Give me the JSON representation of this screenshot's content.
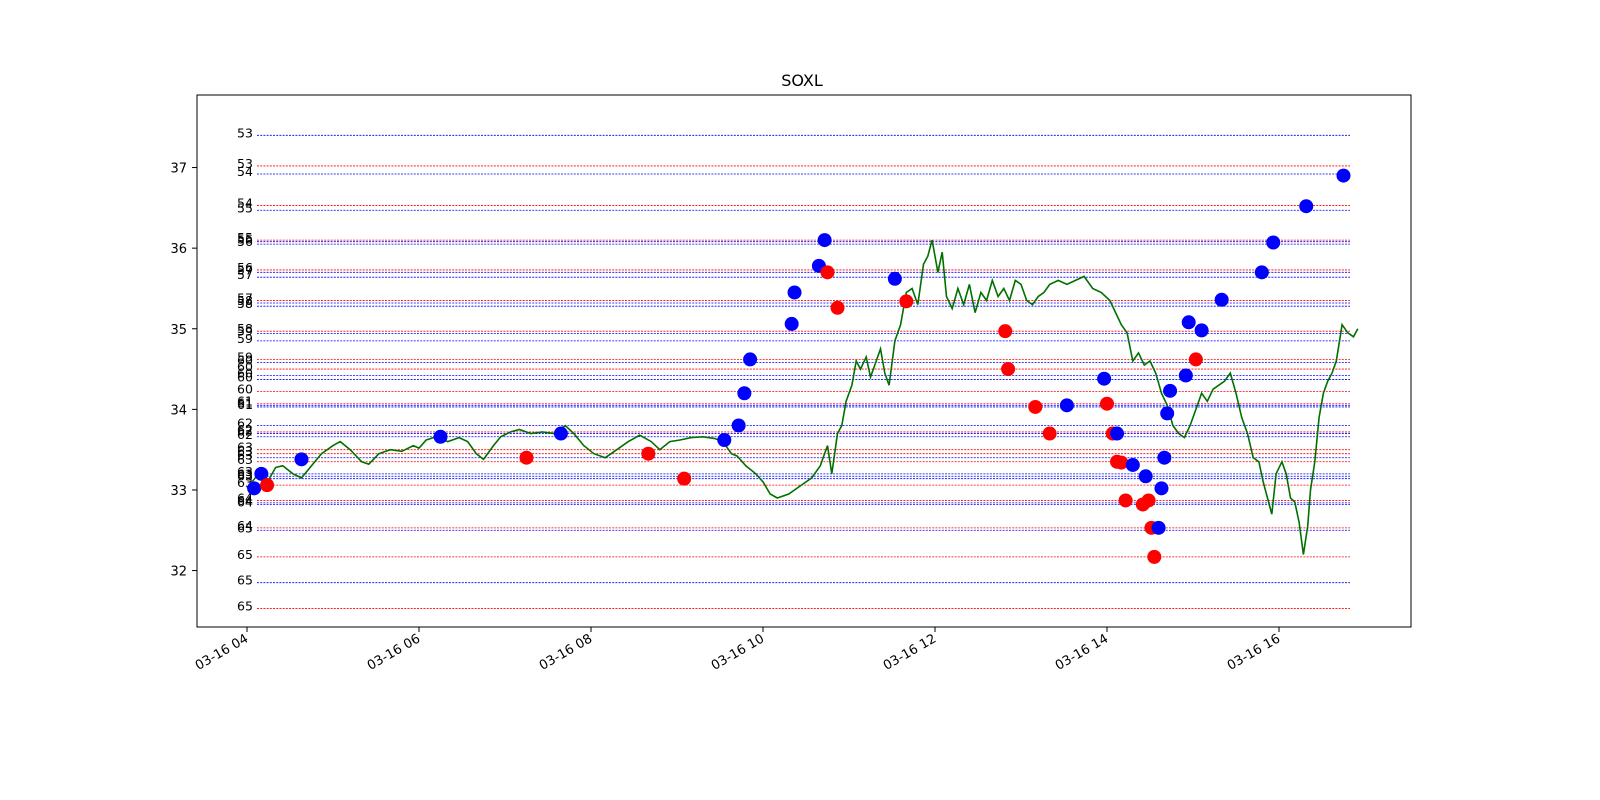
{
  "chart_data": {
    "type": "line",
    "title": "SOXL",
    "xlabel": "",
    "ylabel": "",
    "x_range": [
      "03-16 04:00",
      "03-16 16:55"
    ],
    "ylim": [
      31.3,
      37.9
    ],
    "x_ticks": [
      "03-16 04",
      "03-16 06",
      "03-16 08",
      "03-16 10",
      "03-16 12",
      "03-16 14",
      "03-16 16"
    ],
    "y_ticks": [
      32,
      33,
      34,
      35,
      36,
      37
    ],
    "grid": false,
    "colors": {
      "line": "#007000",
      "buy": "#0000ff",
      "sell": "#ff0000"
    },
    "price_series": {
      "name": "",
      "points": [
        [
          "03-16 04:00",
          33.02
        ],
        [
          "03-16 04:08",
          33.2
        ],
        [
          "03-16 04:13",
          33.06
        ],
        [
          "03-16 04:20",
          33.28
        ],
        [
          "03-16 04:25",
          33.3
        ],
        [
          "03-16 04:32",
          33.2
        ],
        [
          "03-16 04:38",
          33.15
        ],
        [
          "03-16 04:45",
          33.3
        ],
        [
          "03-16 04:52",
          33.45
        ],
        [
          "03-16 05:00",
          33.55
        ],
        [
          "03-16 05:05",
          33.6
        ],
        [
          "03-16 05:12",
          33.5
        ],
        [
          "03-16 05:20",
          33.35
        ],
        [
          "03-16 05:25",
          33.32
        ],
        [
          "03-16 05:32",
          33.45
        ],
        [
          "03-16 05:40",
          33.5
        ],
        [
          "03-16 05:48",
          33.48
        ],
        [
          "03-16 05:56",
          33.55
        ],
        [
          "03-16 06:00",
          33.52
        ],
        [
          "03-16 06:05",
          33.62
        ],
        [
          "03-16 06:12",
          33.66
        ],
        [
          "03-16 06:20",
          33.6
        ],
        [
          "03-16 06:28",
          33.65
        ],
        [
          "03-16 06:34",
          33.6
        ],
        [
          "03-16 06:40",
          33.45
        ],
        [
          "03-16 06:45",
          33.38
        ],
        [
          "03-16 06:52",
          33.55
        ],
        [
          "03-16 06:57",
          33.66
        ],
        [
          "03-16 07:04",
          33.72
        ],
        [
          "03-16 07:10",
          33.75
        ],
        [
          "03-16 07:18",
          33.7
        ],
        [
          "03-16 07:26",
          33.72
        ],
        [
          "03-16 07:34",
          33.7
        ],
        [
          "03-16 07:42",
          33.8
        ],
        [
          "03-16 07:48",
          33.7
        ],
        [
          "03-16 07:55",
          33.55
        ],
        [
          "03-16 08:02",
          33.45
        ],
        [
          "03-16 08:10",
          33.4
        ],
        [
          "03-16 08:18",
          33.5
        ],
        [
          "03-16 08:26",
          33.6
        ],
        [
          "03-16 08:34",
          33.68
        ],
        [
          "03-16 08:42",
          33.6
        ],
        [
          "03-16 08:48",
          33.5
        ],
        [
          "03-16 08:55",
          33.6
        ],
        [
          "03-16 09:02",
          33.62
        ],
        [
          "03-16 09:10",
          33.65
        ],
        [
          "03-16 09:18",
          33.66
        ],
        [
          "03-16 09:26",
          33.64
        ],
        [
          "03-16 09:32",
          33.6
        ],
        [
          "03-16 09:38",
          33.45
        ],
        [
          "03-16 09:42",
          33.42
        ],
        [
          "03-16 09:48",
          33.3
        ],
        [
          "03-16 09:55",
          33.2
        ],
        [
          "03-16 10:00",
          33.1
        ],
        [
          "03-16 10:05",
          32.95
        ],
        [
          "03-16 10:10",
          32.9
        ],
        [
          "03-16 10:18",
          32.95
        ],
        [
          "03-16 10:26",
          33.05
        ],
        [
          "03-16 10:34",
          33.15
        ],
        [
          "03-16 10:40",
          33.3
        ],
        [
          "03-16 10:45",
          33.55
        ],
        [
          "03-16 10:48",
          33.2
        ],
        [
          "03-16 10:52",
          33.7
        ],
        [
          "03-16 10:55",
          33.8
        ],
        [
          "03-16 10:58",
          34.1
        ],
        [
          "03-16 11:02",
          34.3
        ],
        [
          "03-16 11:05",
          34.6
        ],
        [
          "03-16 11:08",
          34.5
        ],
        [
          "03-16 11:12",
          34.65
        ],
        [
          "03-16 11:15",
          34.4
        ],
        [
          "03-16 11:18",
          34.55
        ],
        [
          "03-16 11:22",
          34.75
        ],
        [
          "03-16 11:25",
          34.45
        ],
        [
          "03-16 11:28",
          34.3
        ],
        [
          "03-16 11:32",
          34.85
        ],
        [
          "03-16 11:36",
          35.05
        ],
        [
          "03-16 11:40",
          35.45
        ],
        [
          "03-16 11:44",
          35.5
        ],
        [
          "03-16 11:48",
          35.3
        ],
        [
          "03-16 11:52",
          35.8
        ],
        [
          "03-16 11:55",
          35.9
        ],
        [
          "03-16 11:58",
          36.1
        ],
        [
          "03-16 12:02",
          35.7
        ],
        [
          "03-16 12:05",
          35.95
        ],
        [
          "03-16 12:08",
          35.4
        ],
        [
          "03-16 12:12",
          35.25
        ],
        [
          "03-16 12:16",
          35.5
        ],
        [
          "03-16 12:20",
          35.3
        ],
        [
          "03-16 12:24",
          35.55
        ],
        [
          "03-16 12:28",
          35.2
        ],
        [
          "03-16 12:32",
          35.45
        ],
        [
          "03-16 12:36",
          35.35
        ],
        [
          "03-16 12:40",
          35.6
        ],
        [
          "03-16 12:44",
          35.4
        ],
        [
          "03-16 12:48",
          35.5
        ],
        [
          "03-16 12:52",
          35.35
        ],
        [
          "03-16 12:56",
          35.6
        ],
        [
          "03-16 13:00",
          35.55
        ],
        [
          "03-16 13:04",
          35.35
        ],
        [
          "03-16 13:08",
          35.3
        ],
        [
          "03-16 13:12",
          35.4
        ],
        [
          "03-16 13:16",
          35.45
        ],
        [
          "03-16 13:20",
          35.55
        ],
        [
          "03-16 13:26",
          35.6
        ],
        [
          "03-16 13:32",
          35.55
        ],
        [
          "03-16 13:38",
          35.6
        ],
        [
          "03-16 13:44",
          35.65
        ],
        [
          "03-16 13:50",
          35.5
        ],
        [
          "03-16 13:56",
          35.45
        ],
        [
          "03-16 14:02",
          35.35
        ],
        [
          "03-16 14:06",
          35.2
        ],
        [
          "03-16 14:10",
          35.05
        ],
        [
          "03-16 14:14",
          34.95
        ],
        [
          "03-16 14:18",
          34.6
        ],
        [
          "03-16 14:22",
          34.7
        ],
        [
          "03-16 14:26",
          34.55
        ],
        [
          "03-16 14:30",
          34.6
        ],
        [
          "03-16 14:34",
          34.45
        ],
        [
          "03-16 14:38",
          34.2
        ],
        [
          "03-16 14:42",
          34.05
        ],
        [
          "03-16 14:46",
          33.8
        ],
        [
          "03-16 14:50",
          33.7
        ],
        [
          "03-16 14:54",
          33.65
        ],
        [
          "03-16 14:58",
          33.8
        ],
        [
          "03-16 15:02",
          34.0
        ],
        [
          "03-16 15:06",
          34.2
        ],
        [
          "03-16 15:10",
          34.1
        ],
        [
          "03-16 15:14",
          34.25
        ],
        [
          "03-16 15:18",
          34.3
        ],
        [
          "03-16 15:22",
          34.35
        ],
        [
          "03-16 15:26",
          34.45
        ],
        [
          "03-16 15:30",
          34.2
        ],
        [
          "03-16 15:34",
          33.9
        ],
        [
          "03-16 15:38",
          33.7
        ],
        [
          "03-16 15:42",
          33.4
        ],
        [
          "03-16 15:46",
          33.35
        ],
        [
          "03-16 15:49",
          33.1
        ],
        [
          "03-16 15:52",
          32.9
        ],
        [
          "03-16 15:55",
          32.7
        ],
        [
          "03-16 15:58",
          33.2
        ],
        [
          "03-16 16:02",
          33.35
        ],
        [
          "03-16 16:05",
          33.2
        ],
        [
          "03-16 16:08",
          32.9
        ],
        [
          "03-16 16:11",
          32.85
        ],
        [
          "03-16 16:14",
          32.6
        ],
        [
          "03-16 16:17",
          32.2
        ],
        [
          "03-16 16:20",
          32.55
        ],
        [
          "03-16 16:22",
          33.0
        ],
        [
          "03-16 16:25",
          33.35
        ],
        [
          "03-16 16:28",
          33.9
        ],
        [
          "03-16 16:31",
          34.2
        ],
        [
          "03-16 16:34",
          34.35
        ],
        [
          "03-16 16:37",
          34.45
        ],
        [
          "03-16 16:40",
          34.6
        ],
        [
          "03-16 16:44",
          35.05
        ],
        [
          "03-16 16:48",
          34.95
        ],
        [
          "03-16 16:52",
          34.9
        ],
        [
          "03-16 16:55",
          35.0
        ]
      ]
    },
    "markers": [
      {
        "side": "buy",
        "x": "03-16 04:05",
        "y": 33.02
      },
      {
        "side": "buy",
        "x": "03-16 04:10",
        "y": 33.2
      },
      {
        "side": "sell",
        "x": "03-16 04:14",
        "y": 33.06
      },
      {
        "side": "buy",
        "x": "03-16 04:38",
        "y": 33.38
      },
      {
        "side": "buy",
        "x": "03-16 06:15",
        "y": 33.66
      },
      {
        "side": "sell",
        "x": "03-16 07:15",
        "y": 33.4
      },
      {
        "side": "buy",
        "x": "03-16 07:39",
        "y": 33.7
      },
      {
        "side": "sell",
        "x": "03-16 08:40",
        "y": 33.45
      },
      {
        "side": "sell",
        "x": "03-16 09:05",
        "y": 33.14
      },
      {
        "side": "buy",
        "x": "03-16 09:33",
        "y": 33.62
      },
      {
        "side": "buy",
        "x": "03-16 09:43",
        "y": 33.8
      },
      {
        "side": "buy",
        "x": "03-16 09:47",
        "y": 34.2
      },
      {
        "side": "buy",
        "x": "03-16 09:51",
        "y": 34.62
      },
      {
        "side": "buy",
        "x": "03-16 10:20",
        "y": 35.06
      },
      {
        "side": "buy",
        "x": "03-16 10:22",
        "y": 35.45
      },
      {
        "side": "buy",
        "x": "03-16 10:39",
        "y": 35.78
      },
      {
        "side": "buy",
        "x": "03-16 10:43",
        "y": 36.1
      },
      {
        "side": "sell",
        "x": "03-16 10:45",
        "y": 35.7
      },
      {
        "side": "sell",
        "x": "03-16 10:52",
        "y": 35.26
      },
      {
        "side": "buy",
        "x": "03-16 11:32",
        "y": 35.62
      },
      {
        "side": "sell",
        "x": "03-16 11:40",
        "y": 35.34
      },
      {
        "side": "sell",
        "x": "03-16 12:49",
        "y": 34.97
      },
      {
        "side": "sell",
        "x": "03-16 12:51",
        "y": 34.5
      },
      {
        "side": "sell",
        "x": "03-16 13:10",
        "y": 34.03
      },
      {
        "side": "sell",
        "x": "03-16 13:20",
        "y": 33.7
      },
      {
        "side": "buy",
        "x": "03-16 13:32",
        "y": 34.05
      },
      {
        "side": "buy",
        "x": "03-16 13:58",
        "y": 34.38
      },
      {
        "side": "sell",
        "x": "03-16 14:00",
        "y": 34.07
      },
      {
        "side": "sell",
        "x": "03-16 14:04",
        "y": 33.7
      },
      {
        "side": "buy",
        "x": "03-16 14:07",
        "y": 33.7
      },
      {
        "side": "sell",
        "x": "03-16 14:07",
        "y": 33.35
      },
      {
        "side": "sell",
        "x": "03-16 14:10",
        "y": 33.34
      },
      {
        "side": "sell",
        "x": "03-16 14:13",
        "y": 32.87
      },
      {
        "side": "buy",
        "x": "03-16 14:18",
        "y": 33.31
      },
      {
        "side": "sell",
        "x": "03-16 14:25",
        "y": 32.82
      },
      {
        "side": "buy",
        "x": "03-16 14:27",
        "y": 33.17
      },
      {
        "side": "sell",
        "x": "03-16 14:29",
        "y": 32.87
      },
      {
        "side": "sell",
        "x": "03-16 14:31",
        "y": 32.53
      },
      {
        "side": "sell",
        "x": "03-16 14:33",
        "y": 32.17
      },
      {
        "side": "buy",
        "x": "03-16 14:36",
        "y": 32.53
      },
      {
        "side": "buy",
        "x": "03-16 14:38",
        "y": 33.02
      },
      {
        "side": "buy",
        "x": "03-16 14:40",
        "y": 33.4
      },
      {
        "side": "buy",
        "x": "03-16 14:42",
        "y": 33.95
      },
      {
        "side": "buy",
        "x": "03-16 14:44",
        "y": 34.23
      },
      {
        "side": "buy",
        "x": "03-16 14:55",
        "y": 34.42
      },
      {
        "side": "buy",
        "x": "03-16 14:57",
        "y": 35.08
      },
      {
        "side": "sell",
        "x": "03-16 15:02",
        "y": 34.62
      },
      {
        "side": "buy",
        "x": "03-16 15:06",
        "y": 34.98
      },
      {
        "side": "buy",
        "x": "03-16 15:20",
        "y": 35.36
      },
      {
        "side": "buy",
        "x": "03-16 15:48",
        "y": 35.7
      },
      {
        "side": "buy",
        "x": "03-16 15:56",
        "y": 36.07
      },
      {
        "side": "buy",
        "x": "03-16 16:19",
        "y": 36.52
      },
      {
        "side": "buy",
        "x": "03-16 16:45",
        "y": 36.9
      }
    ],
    "levels": [
      {
        "label": "53",
        "y": 37.4,
        "side": "buy"
      },
      {
        "label": "53",
        "y": 37.02,
        "side": "sell"
      },
      {
        "label": "54",
        "y": 36.92,
        "side": "buy"
      },
      {
        "label": "54",
        "y": 36.53,
        "side": "sell"
      },
      {
        "label": "55",
        "y": 36.47,
        "side": "buy"
      },
      {
        "label": "55",
        "y": 36.1,
        "side": "sell"
      },
      {
        "label": "56",
        "y": 36.08,
        "side": "buy"
      },
      {
        "label": "56",
        "y": 36.05,
        "side": "buy"
      },
      {
        "label": "56",
        "y": 35.73,
        "side": "sell"
      },
      {
        "label": "57",
        "y": 35.7,
        "side": "buy"
      },
      {
        "label": "57",
        "y": 35.64,
        "side": "buy"
      },
      {
        "label": "57",
        "y": 35.35,
        "side": "sell"
      },
      {
        "label": "58",
        "y": 35.32,
        "side": "buy"
      },
      {
        "label": "58",
        "y": 35.28,
        "side": "buy"
      },
      {
        "label": "58",
        "y": 34.97,
        "side": "sell"
      },
      {
        "label": "59",
        "y": 34.94,
        "side": "buy"
      },
      {
        "label": "59",
        "y": 34.85,
        "side": "buy"
      },
      {
        "label": "59",
        "y": 34.62,
        "side": "sell"
      },
      {
        "label": "60",
        "y": 34.58,
        "side": "buy"
      },
      {
        "label": "60",
        "y": 34.5,
        "side": "sell"
      },
      {
        "label": "60",
        "y": 34.42,
        "side": "buy"
      },
      {
        "label": "60",
        "y": 34.37,
        "side": "buy"
      },
      {
        "label": "60",
        "y": 34.22,
        "side": "sell"
      },
      {
        "label": "61",
        "y": 34.07,
        "side": "sell"
      },
      {
        "label": "61",
        "y": 34.05,
        "side": "buy"
      },
      {
        "label": "61",
        "y": 34.03,
        "side": "buy"
      },
      {
        "label": "62",
        "y": 33.8,
        "side": "buy"
      },
      {
        "label": "62",
        "y": 33.72,
        "side": "sell"
      },
      {
        "label": "62",
        "y": 33.7,
        "side": "buy"
      },
      {
        "label": "62",
        "y": 33.66,
        "side": "buy"
      },
      {
        "label": "63",
        "y": 33.5,
        "side": "sell"
      },
      {
        "label": "63",
        "y": 33.45,
        "side": "sell"
      },
      {
        "label": "63",
        "y": 33.4,
        "side": "buy"
      },
      {
        "label": "63",
        "y": 33.35,
        "side": "sell"
      },
      {
        "label": "63",
        "y": 33.2,
        "side": "buy"
      },
      {
        "label": "63",
        "y": 33.17,
        "side": "buy"
      },
      {
        "label": "63",
        "y": 33.14,
        "side": "buy"
      },
      {
        "label": "63",
        "y": 33.06,
        "side": "sell"
      },
      {
        "label": "64",
        "y": 32.87,
        "side": "sell"
      },
      {
        "label": "64",
        "y": 32.84,
        "side": "buy"
      },
      {
        "label": "64",
        "y": 32.82,
        "side": "buy"
      },
      {
        "label": "64",
        "y": 32.53,
        "side": "sell"
      },
      {
        "label": "65",
        "y": 32.5,
        "side": "buy"
      },
      {
        "label": "65",
        "y": 32.17,
        "side": "sell"
      },
      {
        "label": "65",
        "y": 31.85,
        "side": "buy"
      },
      {
        "label": "65",
        "y": 31.53,
        "side": "sell"
      }
    ]
  }
}
